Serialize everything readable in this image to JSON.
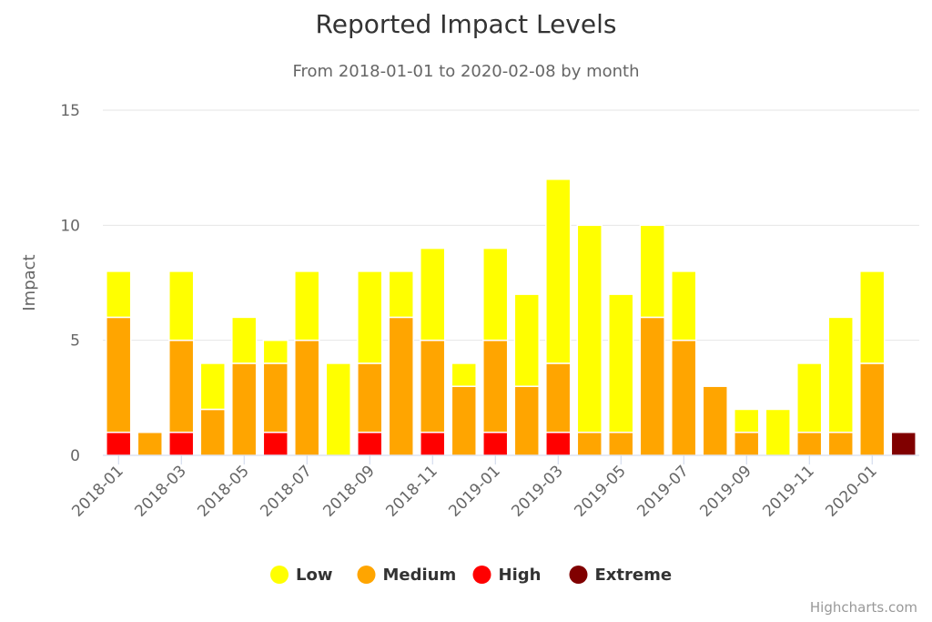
{
  "chart_data": {
    "type": "bar",
    "stacked": true,
    "title": "Reported Impact Levels",
    "subtitle": "From 2018-01-01 to 2020-02-08 by month",
    "xlabel": "",
    "ylabel": "Impact",
    "ylim": [
      0,
      15
    ],
    "yticks": [
      0,
      5,
      10,
      15
    ],
    "grid": true,
    "legend_position": "bottom-center",
    "categories": [
      "2018-01",
      "2018-02",
      "2018-03",
      "2018-04",
      "2018-05",
      "2018-06",
      "2018-07",
      "2018-08",
      "2018-09",
      "2018-10",
      "2018-11",
      "2018-12",
      "2019-01",
      "2019-02",
      "2019-03",
      "2019-04",
      "2019-05",
      "2019-06",
      "2019-07",
      "2019-08",
      "2019-09",
      "2019-10",
      "2019-11",
      "2019-12",
      "2020-01",
      "2020-02"
    ],
    "xtick_labels": [
      "2018-01",
      "2018-03",
      "2018-05",
      "2018-07",
      "2018-09",
      "2018-11",
      "2019-01",
      "2019-03",
      "2019-05",
      "2019-07",
      "2019-09",
      "2019-11",
      "2020-01"
    ],
    "series": [
      {
        "name": "Low",
        "color": "#ffff00",
        "values": [
          2,
          0,
          3,
          2,
          2,
          1,
          3,
          4,
          4,
          2,
          4,
          1,
          4,
          4,
          8,
          9,
          6,
          4,
          3,
          0,
          1,
          2,
          3,
          5,
          4,
          0
        ]
      },
      {
        "name": "Medium",
        "color": "#ffa500",
        "values": [
          5,
          1,
          4,
          2,
          4,
          3,
          5,
          0,
          3,
          6,
          4,
          3,
          4,
          3,
          3,
          1,
          1,
          6,
          5,
          3,
          1,
          0,
          1,
          1,
          4,
          0
        ]
      },
      {
        "name": "High",
        "color": "#ff0000",
        "values": [
          1,
          0,
          1,
          0,
          0,
          1,
          0,
          0,
          1,
          0,
          1,
          0,
          1,
          0,
          1,
          0,
          0,
          0,
          0,
          0,
          0,
          0,
          0,
          0,
          0,
          0
        ]
      },
      {
        "name": "Extreme",
        "color": "#800000",
        "values": [
          0,
          0,
          0,
          0,
          0,
          0,
          0,
          0,
          0,
          0,
          0,
          0,
          0,
          0,
          0,
          0,
          0,
          0,
          0,
          0,
          0,
          0,
          0,
          0,
          0,
          1
        ]
      }
    ]
  },
  "credits": "Highcharts.com"
}
